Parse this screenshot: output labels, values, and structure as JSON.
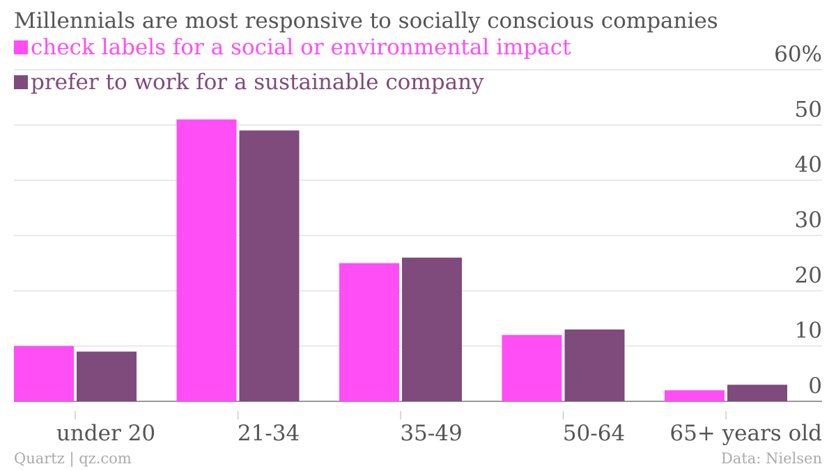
{
  "chart_data": {
    "type": "bar",
    "title": "Millennials are most responsive to socially conscious companies",
    "categories": [
      "under 20",
      "21-34",
      "35-49",
      "50-64",
      "65+ years old"
    ],
    "series": [
      {
        "name": "check labels for a social or environmental impact",
        "color": "#ff4ef5",
        "values": [
          10,
          51,
          25,
          12,
          2
        ]
      },
      {
        "name": "prefer to work for a sustainable company",
        "color": "#7f4a7c",
        "values": [
          9,
          49,
          26,
          13,
          3
        ]
      }
    ],
    "ylim": [
      0,
      60
    ],
    "yticks": [
      0,
      10,
      20,
      30,
      40,
      50,
      60
    ],
    "ytick_labels": [
      "0",
      "10",
      "20",
      "30",
      "40",
      "50",
      "60%"
    ],
    "y_axis_side": "right",
    "grid": true,
    "legend_placement": "top-left"
  },
  "footer": {
    "source_left": "Quartz | qz.com",
    "source_right": "Data: Nielsen"
  }
}
